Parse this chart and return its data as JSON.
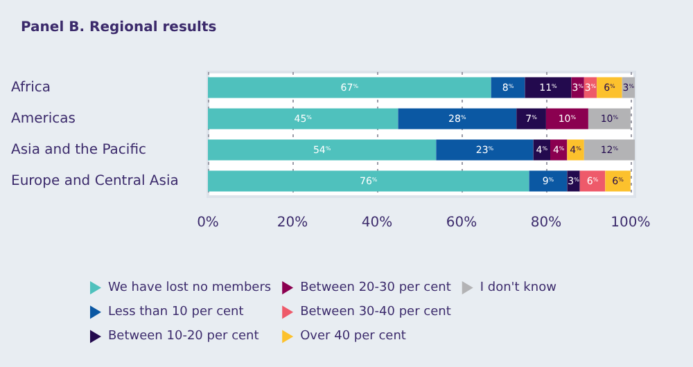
{
  "chart_data": {
    "type": "bar",
    "orientation": "horizontal",
    "stacked": true,
    "title": "Panel B. Regional results",
    "categories": [
      "Africa",
      "Americas",
      "Asia and the Pacific",
      "Europe and Central Asia"
    ],
    "series": [
      {
        "name": "We have lost no members",
        "color": "#4fc1bd",
        "values": [
          67,
          45,
          54,
          76
        ],
        "value_labels": [
          "67%",
          "45%",
          "54%",
          "76%"
        ]
      },
      {
        "name": "Less than 10 per cent",
        "color": "#0b58a3",
        "values": [
          8,
          28,
          23,
          9
        ],
        "value_labels": [
          "8%",
          "28%",
          "23%",
          "9%"
        ]
      },
      {
        "name": "Between 10-20 per cent",
        "color": "#230a4e",
        "values": [
          11,
          7,
          4,
          3
        ],
        "value_labels": [
          "11%",
          "7%",
          "4%",
          "3%"
        ]
      },
      {
        "name": "Between 20-30 per cent",
        "color": "#8b0050",
        "values": [
          3,
          10,
          4,
          null
        ],
        "value_labels": [
          "3%",
          "10%",
          "4%",
          null
        ]
      },
      {
        "name": "Between 30-40 per cent",
        "color": "#ee5a6a",
        "values": [
          3,
          null,
          null,
          6
        ],
        "value_labels": [
          "3%",
          null,
          null,
          "6%"
        ]
      },
      {
        "name": "Over 40 per cent",
        "color": "#fcc12d",
        "values": [
          6,
          null,
          4,
          6
        ],
        "value_labels": [
          "6%",
          null,
          "4%",
          "6%"
        ]
      },
      {
        "name": "I don't know",
        "color": "#b3b3b5",
        "values": [
          3,
          10,
          12,
          null
        ],
        "value_labels": [
          "3%",
          "10%",
          "12%",
          null
        ]
      }
    ],
    "xlim": [
      0,
      101
    ],
    "xticks": [
      {
        "value": 0,
        "label": "0%"
      },
      {
        "value": 20,
        "label": "20%"
      },
      {
        "value": 40,
        "label": "40%"
      },
      {
        "value": 60,
        "label": "60%"
      },
      {
        "value": 80,
        "label": "80%"
      },
      {
        "value": 100,
        "label": "100%"
      }
    ],
    "grid": "x",
    "legend": "bottom"
  }
}
